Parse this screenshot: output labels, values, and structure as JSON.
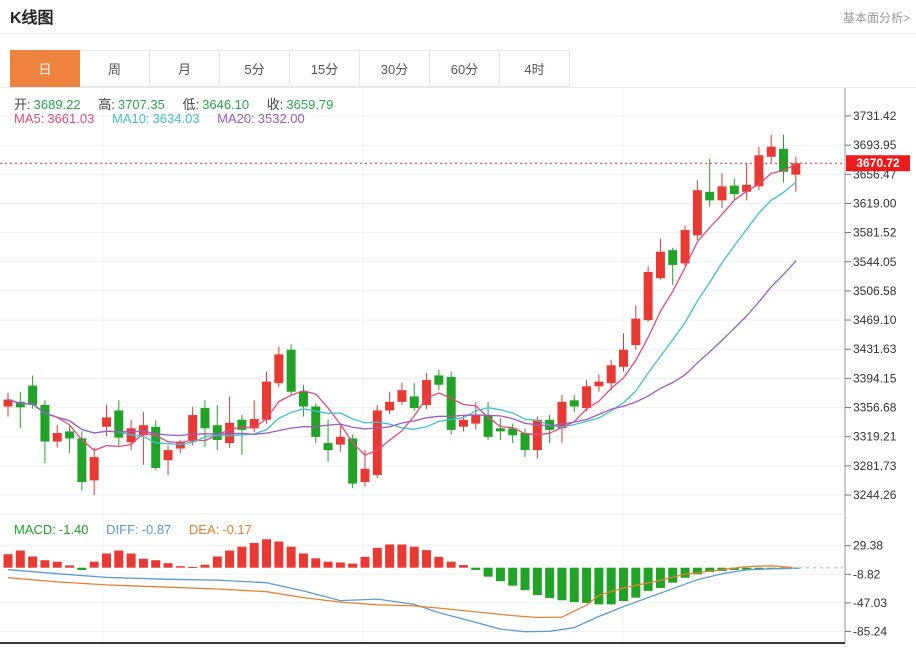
{
  "header": {
    "title": "K线图",
    "link": "基本面分析>"
  },
  "tabs": {
    "items": [
      {
        "label": "日",
        "active": true
      },
      {
        "label": "周",
        "active": false
      },
      {
        "label": "月",
        "active": false
      },
      {
        "label": "5分",
        "active": false
      },
      {
        "label": "15分",
        "active": false
      },
      {
        "label": "30分",
        "active": false
      },
      {
        "label": "60分",
        "active": false
      },
      {
        "label": "4时",
        "active": false
      }
    ]
  },
  "ohlc_legend": {
    "open_label": "开:",
    "open": "3689.22",
    "high_label": "高:",
    "high": "3707.35",
    "low_label": "低:",
    "low": "3646.10",
    "close_label": "收:",
    "close": "3659.79"
  },
  "ma_legend": {
    "ma5_label": "MA5:",
    "ma5": "3661.03",
    "ma10_label": "MA10:",
    "ma10": "3634.03",
    "ma20_label": "MA20:",
    "ma20": "3532.00"
  },
  "macd_legend": {
    "macd_label": "MACD:",
    "macd": "-1.40",
    "diff_label": "DIFF:",
    "diff": "-0.87",
    "dea_label": "DEA:",
    "dea": "-0.17"
  },
  "price_tag": {
    "value": "3670.72"
  },
  "colors": {
    "up": "#e83a33",
    "down": "#20a326",
    "value_green": "#26a84a",
    "ma5": "#e8497a",
    "ma10": "#3ec1d3",
    "ma20": "#a05bc0",
    "diff": "#5b9bd5",
    "dea": "#e8822e",
    "accent_tab": "#ed833e",
    "price_tag_bg": "#ed1c1c",
    "price_line": "#e0303a",
    "grid": "#eef1f4",
    "axis": "#999999",
    "tick_text": "#333333",
    "bottom_line": "#3a3a3a",
    "tail_dash": "#a7d8d4"
  },
  "chart_data": [
    {
      "type": "candlestick",
      "title": "K线图 日K",
      "ylabel": "",
      "y_ticks": [
        "3731.42",
        "3693.95",
        "3656.47",
        "3619.00",
        "3581.52",
        "3544.05",
        "3506.58",
        "3469.10",
        "3431.63",
        "3394.15",
        "3356.68",
        "3319.21",
        "3281.73",
        "3244.26"
      ],
      "ylim": [
        3244.26,
        3731.42
      ],
      "grid": true,
      "last_price": 3670.72,
      "ma_periods": [
        5,
        10,
        20
      ],
      "candles": [
        [
          3358,
          3376,
          3345,
          3367
        ],
        [
          3364,
          3377,
          3330,
          3357
        ],
        [
          3385,
          3398,
          3355,
          3360
        ],
        [
          3360,
          3366,
          3285,
          3313
        ],
        [
          3313,
          3334,
          3305,
          3324
        ],
        [
          3326,
          3334,
          3298,
          3317
        ],
        [
          3317,
          3326,
          3250,
          3261
        ],
        [
          3263,
          3305,
          3244,
          3293
        ],
        [
          3332,
          3360,
          3320,
          3344
        ],
        [
          3353,
          3366,
          3308,
          3318
        ],
        [
          3312,
          3341,
          3302,
          3330
        ],
        [
          3321,
          3351,
          3283,
          3334
        ],
        [
          3332,
          3340,
          3276,
          3279
        ],
        [
          3289,
          3308,
          3270,
          3302
        ],
        [
          3304,
          3315,
          3298,
          3313
        ],
        [
          3313,
          3358,
          3308,
          3347
        ],
        [
          3356,
          3366,
          3306,
          3330
        ],
        [
          3334,
          3360,
          3302,
          3315
        ],
        [
          3311,
          3371,
          3305,
          3337
        ],
        [
          3341,
          3347,
          3296,
          3328
        ],
        [
          3330,
          3366,
          3325,
          3342
        ],
        [
          3341,
          3403,
          3336,
          3390
        ],
        [
          3388,
          3435,
          3383,
          3425
        ],
        [
          3431,
          3438,
          3372,
          3377
        ],
        [
          3377,
          3386,
          3345,
          3358
        ],
        [
          3358,
          3362,
          3311,
          3319
        ],
        [
          3311,
          3341,
          3287,
          3302
        ],
        [
          3309,
          3334,
          3300,
          3319
        ],
        [
          3317,
          3322,
          3253,
          3259
        ],
        [
          3261,
          3302,
          3255,
          3278
        ],
        [
          3270,
          3360,
          3266,
          3353
        ],
        [
          3353,
          3377,
          3348,
          3364
        ],
        [
          3364,
          3389,
          3360,
          3379
        ],
        [
          3371,
          3388,
          3352,
          3356
        ],
        [
          3360,
          3401,
          3355,
          3392
        ],
        [
          3398,
          3405,
          3379,
          3386
        ],
        [
          3396,
          3403,
          3322,
          3328
        ],
        [
          3332,
          3347,
          3326,
          3341
        ],
        [
          3336,
          3364,
          3328,
          3347
        ],
        [
          3347,
          3364,
          3315,
          3319
        ],
        [
          3330,
          3343,
          3315,
          3326
        ],
        [
          3330,
          3336,
          3311,
          3321
        ],
        [
          3324,
          3330,
          3293,
          3302
        ],
        [
          3302,
          3345,
          3291,
          3341
        ],
        [
          3341,
          3347,
          3311,
          3328
        ],
        [
          3330,
          3373,
          3311,
          3364
        ],
        [
          3366,
          3373,
          3351,
          3358
        ],
        [
          3356,
          3392,
          3352,
          3384
        ],
        [
          3384,
          3399,
          3377,
          3390
        ],
        [
          3388,
          3418,
          3379,
          3411
        ],
        [
          3409,
          3452,
          3403,
          3431
        ],
        [
          3437,
          3488,
          3431,
          3471
        ],
        [
          3469,
          3538,
          3467,
          3531
        ],
        [
          3523,
          3574,
          3521,
          3557
        ],
        [
          3559,
          3562,
          3514,
          3540
        ],
        [
          3542,
          3591,
          3538,
          3585
        ],
        [
          3578,
          3649,
          3572,
          3636
        ],
        [
          3634,
          3676,
          3615,
          3623
        ],
        [
          3623,
          3658,
          3613,
          3641
        ],
        [
          3642,
          3651,
          3623,
          3631
        ],
        [
          3634,
          3671,
          3623,
          3643
        ],
        [
          3641,
          3692,
          3636,
          3681
        ],
        [
          3679,
          3707,
          3672,
          3692
        ],
        [
          3689.22,
          3707.35,
          3646.1,
          3659.79
        ],
        [
          3656,
          3679,
          3634,
          3670.72
        ]
      ]
    },
    {
      "type": "macd",
      "y_ticks": [
        "29.38",
        "-8.82",
        "-47.03",
        "-85.24"
      ],
      "histogram": [
        18,
        23,
        15,
        10,
        8,
        3,
        -3,
        8,
        19,
        23,
        19,
        12,
        10,
        6,
        2,
        1,
        4,
        15,
        23,
        28,
        33,
        38,
        35,
        28,
        19,
        12.5,
        8,
        7,
        5.5,
        14.5,
        26.5,
        31,
        31,
        28,
        23.5,
        14.5,
        8,
        3.5,
        -3,
        -12,
        -18,
        -24,
        -30,
        -36.5,
        -40.5,
        -43.5,
        -46,
        -47,
        -49,
        -49,
        -44.5,
        -40,
        -31,
        -27,
        -20,
        -13.4,
        -8.8,
        -5.7,
        -4.4,
        -3,
        -2.5,
        -2,
        -1.8,
        -1.6,
        -1.4
      ],
      "diff": [
        [
          0,
          -2.7
        ],
        [
          4,
          -8
        ],
        [
          8,
          -13
        ],
        [
          13,
          -15.5
        ],
        [
          17,
          -16.5
        ],
        [
          21,
          -20
        ],
        [
          24,
          -31
        ],
        [
          27,
          -44
        ],
        [
          30,
          -42
        ],
        [
          33,
          -49
        ],
        [
          35,
          -60
        ],
        [
          38,
          -73
        ],
        [
          40,
          -82
        ],
        [
          42,
          -85.5
        ],
        [
          44,
          -85
        ],
        [
          46,
          -80
        ],
        [
          48,
          -65
        ],
        [
          50,
          -52
        ],
        [
          52,
          -40
        ],
        [
          54,
          -28
        ],
        [
          56,
          -16
        ],
        [
          58,
          -8
        ],
        [
          60,
          -3
        ],
        [
          62,
          -1.5
        ],
        [
          64,
          -0.87
        ]
      ],
      "dea": [
        [
          0,
          -13.4
        ],
        [
          4,
          -19
        ],
        [
          8,
          -23
        ],
        [
          13,
          -26
        ],
        [
          17,
          -28.5
        ],
        [
          21,
          -32
        ],
        [
          24,
          -40
        ],
        [
          27,
          -46
        ],
        [
          30,
          -49.5
        ],
        [
          33,
          -51
        ],
        [
          35,
          -54
        ],
        [
          38,
          -59
        ],
        [
          41,
          -64
        ],
        [
          43,
          -66.5
        ],
        [
          45,
          -66
        ],
        [
          47,
          -50
        ],
        [
          48,
          -37
        ],
        [
          50,
          -27
        ],
        [
          53,
          -17
        ],
        [
          55,
          -8.5
        ],
        [
          58,
          -2.5
        ],
        [
          60,
          1.5
        ],
        [
          62,
          2.5
        ],
        [
          64,
          -0.17
        ]
      ],
      "tail_dash_level": 0
    }
  ]
}
